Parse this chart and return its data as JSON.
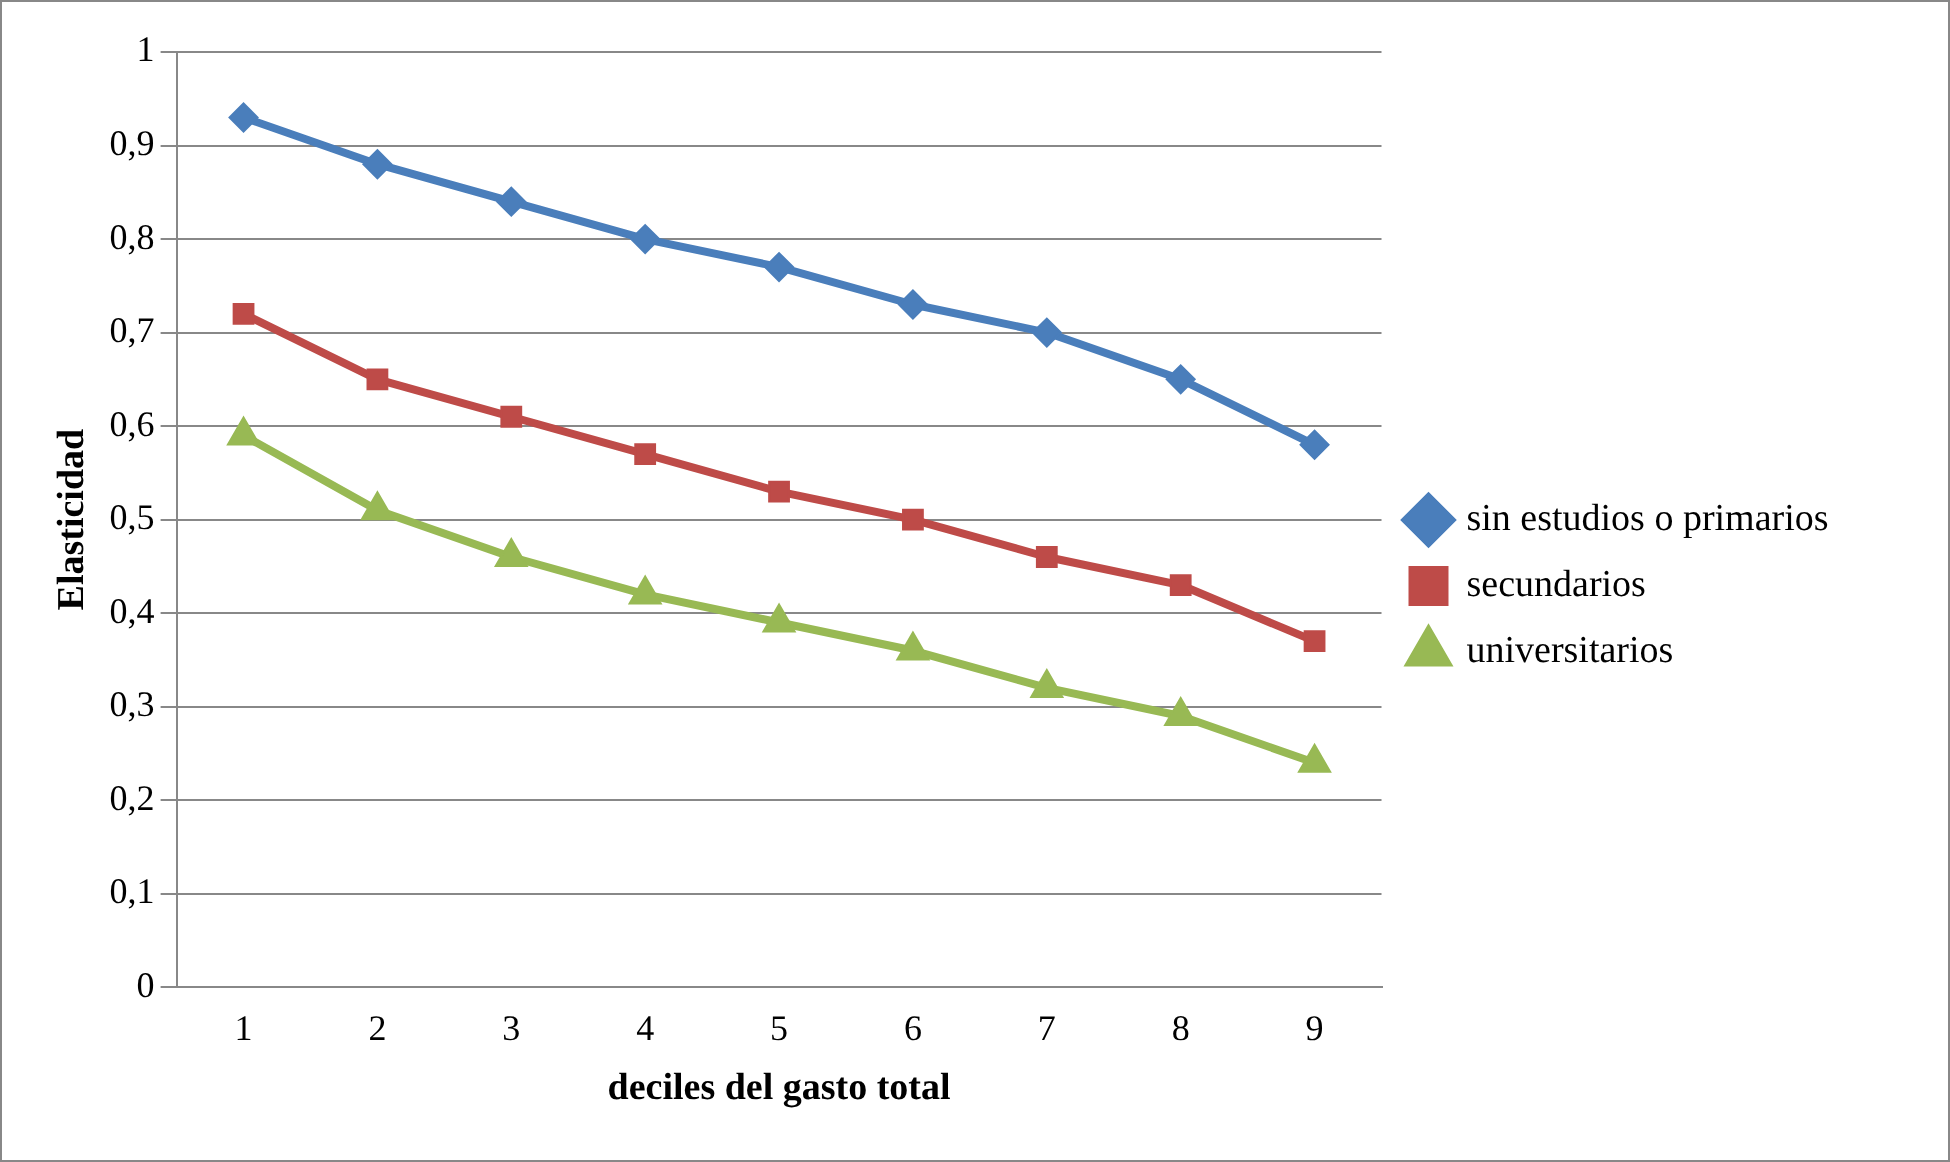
{
  "chart_data": {
    "type": "line",
    "xlabel": "deciles del gasto total",
    "ylabel": "Elasticidad",
    "categories": [
      "1",
      "2",
      "3",
      "4",
      "5",
      "6",
      "7",
      "8",
      "9"
    ],
    "series": [
      {
        "name": "sin estudios o primarios",
        "color": "#4a7ebb",
        "marker": "diamond",
        "values": [
          0.93,
          0.88,
          0.84,
          0.8,
          0.77,
          0.73,
          0.7,
          0.65,
          0.58
        ]
      },
      {
        "name": "secundarios",
        "color": "#be4b48",
        "marker": "square",
        "values": [
          0.72,
          0.65,
          0.61,
          0.57,
          0.53,
          0.5,
          0.46,
          0.43,
          0.37
        ]
      },
      {
        "name": "universitarios",
        "color": "#98b954",
        "marker": "triangle",
        "values": [
          0.59,
          0.51,
          0.46,
          0.42,
          0.39,
          0.36,
          0.32,
          0.29,
          0.24
        ]
      }
    ],
    "ylim": [
      0,
      1
    ],
    "yticks": [
      0,
      {
        "value": 0.1,
        "label": "0,1"
      },
      {
        "value": 0.2,
        "label": "0,2"
      },
      {
        "value": 0.3,
        "label": "0,3"
      },
      {
        "value": 0.4,
        "label": "0,4"
      },
      {
        "value": 0.5,
        "label": "0,5"
      },
      {
        "value": 0.6,
        "label": "0,6"
      },
      {
        "value": 0.7,
        "label": "0,7"
      },
      {
        "value": 0.8,
        "label": "0,8"
      },
      {
        "value": 0.9,
        "label": "0,9"
      },
      1
    ],
    "grid": "y",
    "legend": "right",
    "line_style": "solid"
  }
}
